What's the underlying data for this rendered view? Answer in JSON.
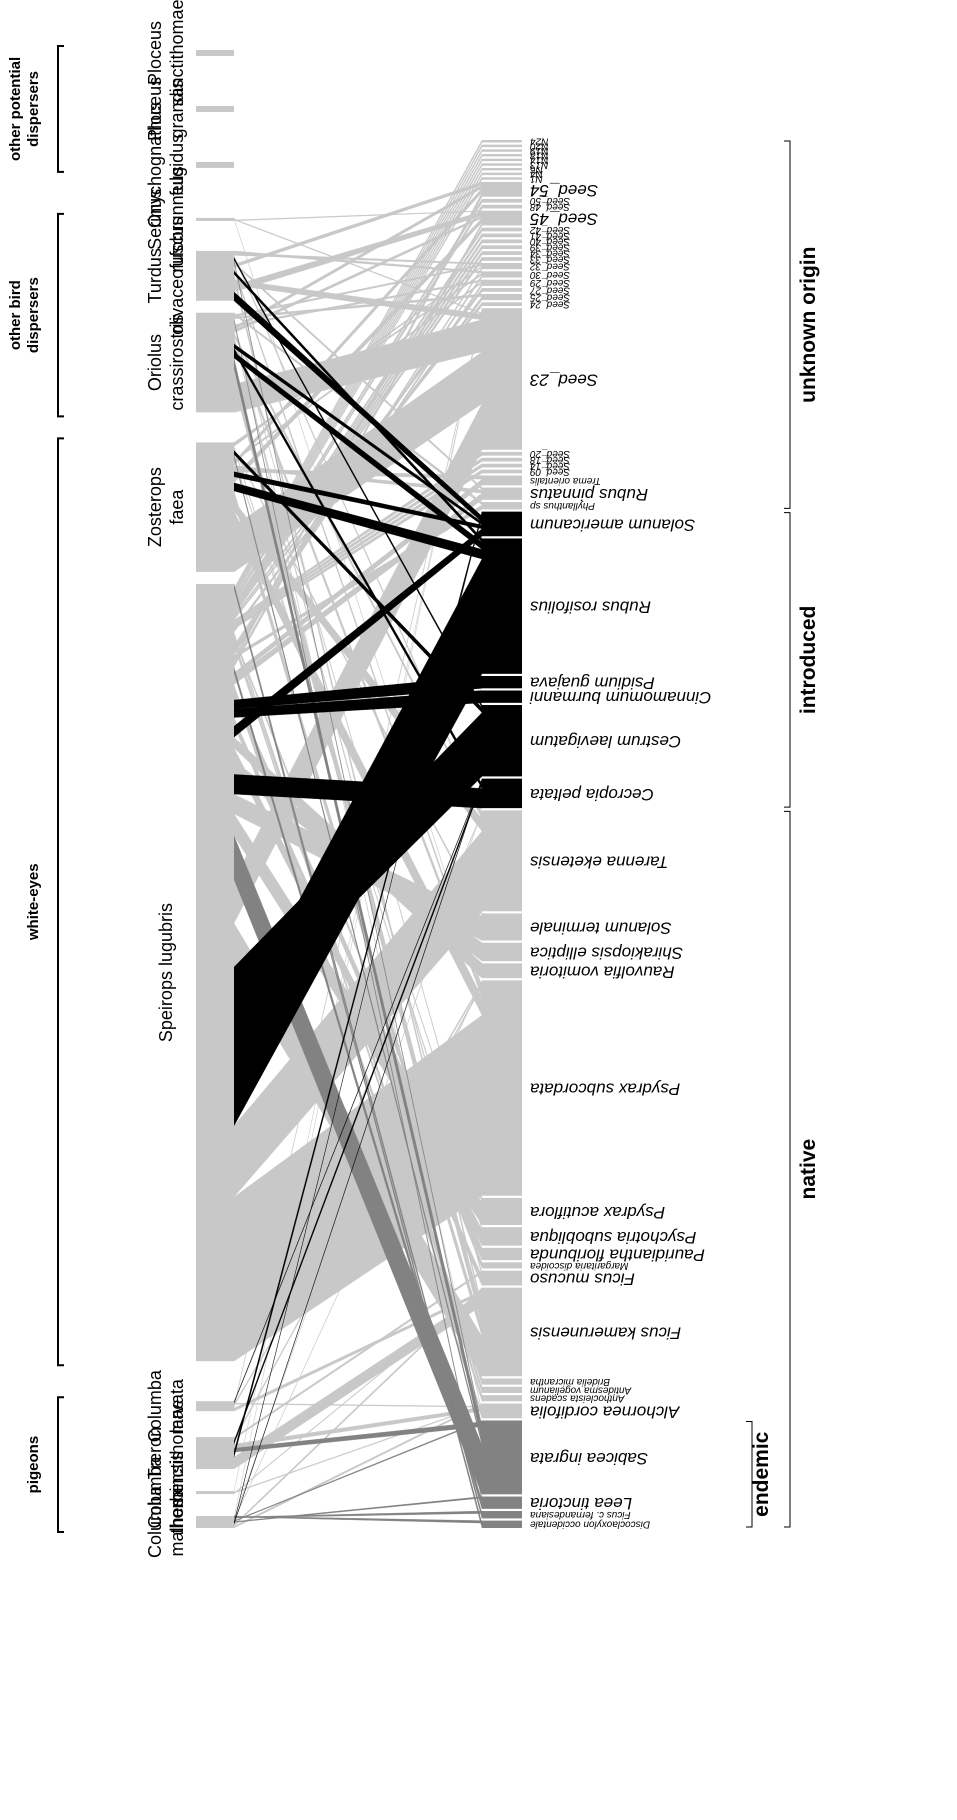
{
  "colors": {
    "native": "#c8c8c8",
    "introduced": "#000000",
    "endemic": "#828282",
    "background": "#ffffff"
  },
  "bird_groups": [
    {
      "label": "pigeons"
    },
    {
      "label": "white-eyes"
    },
    {
      "label": "other bird dispersers"
    },
    {
      "label": "other potential dispersers"
    }
  ],
  "birds": [
    {
      "name": "Columba malherbi",
      "lines": [
        "Columba",
        "malherbi"
      ],
      "weight": 12
    },
    {
      "name": "Columba thomensis",
      "lines": [
        "Columba",
        "thomensis"
      ],
      "weight": 3
    },
    {
      "name": "Treron sanctithomae",
      "lines": [
        "Treron",
        "sanctithomae"
      ],
      "weight": 32
    },
    {
      "name": "Columba larvata",
      "lines": [
        "Columba",
        "larvata"
      ],
      "weight": 10
    },
    {
      "name": "Speirops lugubris",
      "lines": [
        "Speirops lugubris"
      ],
      "weight": 780
    },
    {
      "name": "Zosterops faea",
      "lines": [
        "Zosterops",
        "faea"
      ],
      "weight": 130
    },
    {
      "name": "Oriolus crassirostris",
      "lines": [
        "Oriolus",
        "crassirostris"
      ],
      "weight": 100
    },
    {
      "name": "Turdus olivaceofuscus",
      "lines": [
        "Turdus",
        "olivaceofuscus"
      ],
      "weight": 50
    },
    {
      "name": "Serinus rufobrunneus",
      "lines": [
        "Serinus",
        "rufobrunneus"
      ],
      "weight": 3
    },
    {
      "name": "Onychognathus fulgidus",
      "lines": [
        "Onychognathus",
        "fulgidus"
      ],
      "weight": 6
    },
    {
      "name": "Ploceus grandis",
      "lines": [
        "Ploceus",
        "grandis"
      ],
      "weight": 6
    },
    {
      "name": "Ploceus sanctithomae",
      "lines": [
        "Ploceus",
        "sanctithomae"
      ],
      "weight": 6
    }
  ],
  "plants": [
    {
      "name": "Discoclaoxylon occidentale",
      "origin": "endemic",
      "weight": 6
    },
    {
      "name": "Ficus c. fernandesiana",
      "origin": "endemic",
      "weight": 6
    },
    {
      "name": "Leea tinctoria",
      "origin": "endemic",
      "weight": 10
    },
    {
      "name": "Sabicea ingrata",
      "origin": "endemic",
      "weight": 60
    },
    {
      "name": "Alchornea cordifolia",
      "origin": "native",
      "weight": 12
    },
    {
      "name": "Anthocleista scadens",
      "origin": "native",
      "weight": 5
    },
    {
      "name": "Antidesma vogelianum",
      "origin": "native",
      "weight": 5
    },
    {
      "name": "Bridelia micrantha",
      "origin": "native",
      "weight": 5
    },
    {
      "name": "Ficus kamerunensis",
      "origin": "native",
      "weight": 72
    },
    {
      "name": "Ficus mucuso",
      "origin": "native",
      "weight": 12
    },
    {
      "name": "Margaritaria discoidea",
      "origin": "native",
      "weight": 5
    },
    {
      "name": "Pauridiantha floribunda",
      "origin": "native",
      "weight": 10
    },
    {
      "name": "Psychotria subobliqua",
      "origin": "native",
      "weight": 15
    },
    {
      "name": "Psydrax acutiflora",
      "origin": "native",
      "weight": 22
    },
    {
      "name": "Psydrax subcordata",
      "origin": "native",
      "weight": 175
    },
    {
      "name": "Rauvolfia vomitoria",
      "origin": "native",
      "weight": 12
    },
    {
      "name": "Shirakiopsis elliptica",
      "origin": "native",
      "weight": 15
    },
    {
      "name": "Solanum terminale",
      "origin": "native",
      "weight": 22
    },
    {
      "name": "Tarenna eketensis",
      "origin": "native",
      "weight": 82
    },
    {
      "name": "Cecropia peltata",
      "origin": "introduced",
      "weight": 24
    },
    {
      "name": "Cestrum laevigatum",
      "origin": "introduced",
      "weight": 58
    },
    {
      "name": "Cinnamomum burmanni",
      "origin": "introduced",
      "weight": 10
    },
    {
      "name": "Psidium guajava",
      "origin": "introduced",
      "weight": 10
    },
    {
      "name": "Rubus rosifolius",
      "origin": "introduced",
      "weight": 110
    },
    {
      "name": "Solanum americanum",
      "origin": "introduced",
      "weight": 20
    },
    {
      "name": "Phyllanthus sp",
      "origin": "unknown",
      "weight": 6
    },
    {
      "name": "Rubus pinnatus",
      "origin": "unknown",
      "weight": 10
    },
    {
      "name": "Trema orientalis",
      "origin": "unknown",
      "weight": 8
    },
    {
      "name": "Seed_09",
      "origin": "unknown",
      "weight": 3
    },
    {
      "name": "Seed_14",
      "origin": "unknown",
      "weight": 3
    },
    {
      "name": "Seed_18",
      "origin": "unknown",
      "weight": 3
    },
    {
      "name": "Seed_20",
      "origin": "unknown",
      "weight": 3
    },
    {
      "name": "Seed_23",
      "origin": "unknown",
      "weight": 115
    },
    {
      "name": "Seed_24",
      "origin": "unknown",
      "weight": 3
    },
    {
      "name": "Seed_25",
      "origin": "unknown",
      "weight": 5
    },
    {
      "name": "Seed_27",
      "origin": "unknown",
      "weight": 3
    },
    {
      "name": "Seed_29",
      "origin": "unknown",
      "weight": 5
    },
    {
      "name": "Seed_30",
      "origin": "unknown",
      "weight": 5
    },
    {
      "name": "Seed_32",
      "origin": "unknown",
      "weight": 5
    },
    {
      "name": "Seed_33",
      "origin": "unknown",
      "weight": 3
    },
    {
      "name": "Seed_34",
      "origin": "unknown",
      "weight": 3
    },
    {
      "name": "Seed_39",
      "origin": "unknown",
      "weight": 3
    },
    {
      "name": "Seed_40",
      "origin": "unknown",
      "weight": 3
    },
    {
      "name": "Seed_41",
      "origin": "unknown",
      "weight": 3
    },
    {
      "name": "Seed_42",
      "origin": "unknown",
      "weight": 3
    },
    {
      "name": "Seed_45",
      "origin": "unknown",
      "weight": 12
    },
    {
      "name": "Seed_48",
      "origin": "unknown",
      "weight": 3
    },
    {
      "name": "Seed_50",
      "origin": "unknown",
      "weight": 3
    },
    {
      "name": "Seed_54",
      "origin": "unknown",
      "weight": 12
    },
    {
      "name": "N1",
      "origin": "unknown",
      "weight": 2
    },
    {
      "name": "N4",
      "origin": "unknown",
      "weight": 2
    },
    {
      "name": "N6",
      "origin": "unknown",
      "weight": 2
    },
    {
      "name": "N13",
      "origin": "unknown",
      "weight": 2
    },
    {
      "name": "N14",
      "origin": "unknown",
      "weight": 2
    },
    {
      "name": "N18",
      "origin": "unknown",
      "weight": 2
    },
    {
      "name": "N19",
      "origin": "unknown",
      "weight": 2
    },
    {
      "name": "N20",
      "origin": "unknown",
      "weight": 2
    },
    {
      "name": "N24",
      "origin": "unknown",
      "weight": 2
    }
  ],
  "origin_groups": [
    {
      "key": "endemic",
      "label": "endemic"
    },
    {
      "key": "native",
      "label": "native"
    },
    {
      "key": "introduced",
      "label": "introduced"
    },
    {
      "key": "unknown",
      "label": "unknown origin"
    }
  ],
  "interactions": [
    [
      "Speirops lugubris",
      "Psydrax subcordata",
      150
    ],
    [
      "Speirops lugubris",
      "Tarenna eketensis",
      65
    ],
    [
      "Speirops lugubris",
      "Rubus rosifolius",
      95
    ],
    [
      "Speirops lugubris",
      "Cestrum laevigatum",
      50
    ],
    [
      "Speirops lugubris",
      "Ficus kamerunensis",
      40
    ],
    [
      "Speirops lugubris",
      "Seed_23",
      40
    ],
    [
      "Speirops lugubris",
      "Sabicea ingrata",
      40
    ],
    [
      "Speirops lugubris",
      "Psydrax acutiflora",
      20
    ],
    [
      "Speirops lugubris",
      "Solanum terminale",
      18
    ],
    [
      "Speirops lugubris",
      "Cecropia peltata",
      18
    ],
    [
      "Speirops lugubris",
      "Shirakiopsis elliptica",
      12
    ],
    [
      "Speirops lugubris",
      "Psychotria subobliqua",
      12
    ],
    [
      "Speirops lugubris",
      "Rauvolfia vomitoria",
      10
    ],
    [
      "Speirops lugubris",
      "Solanum americanum",
      10
    ],
    [
      "Speirops lugubris",
      "Ficus mucuso",
      8
    ],
    [
      "Speirops lugubris",
      "Cinnamomum burmanni",
      8
    ],
    [
      "Speirops lugubris",
      "Psidium guajava",
      8
    ],
    [
      "Speirops lugubris",
      "Pauridiantha floribunda",
      8
    ],
    [
      "Speirops lugubris",
      "Alchornea cordifolia",
      6
    ],
    [
      "Speirops lugubris",
      "Rubus pinnatus",
      6
    ],
    [
      "Speirops lugubris",
      "Trema orientalis",
      5
    ],
    [
      "Speirops lugubris",
      "Leea tinctoria",
      5
    ],
    [
      "Speirops lugubris",
      "Seed_45",
      4
    ],
    [
      "Speirops lugubris",
      "Seed_54",
      4
    ],
    [
      "Speirops lugubris",
      "Phyllanthus sp",
      3
    ],
    [
      "Speirops lugubris",
      "Seed_32",
      3
    ],
    [
      "Speirops lugubris",
      "Seed_29",
      3
    ],
    [
      "Speirops lugubris",
      "Seed_30",
      3
    ],
    [
      "Speirops lugubris",
      "Anthocleista scadens",
      3
    ],
    [
      "Speirops lugubris",
      "Bridelia micrantha",
      3
    ],
    [
      "Speirops lugubris",
      "Margaritaria discoidea",
      3
    ],
    [
      "Speirops lugubris",
      "Antidesma vogelianum",
      3
    ],
    [
      "Speirops lugubris",
      "Seed_25",
      3
    ],
    [
      "Speirops lugubris",
      "Seed_09",
      2
    ],
    [
      "Speirops lugubris",
      "Seed_14",
      2
    ],
    [
      "Speirops lugubris",
      "Seed_18",
      2
    ],
    [
      "Speirops lugubris",
      "Seed_20",
      2
    ],
    [
      "Speirops lugubris",
      "Seed_24",
      2
    ],
    [
      "Speirops lugubris",
      "Seed_27",
      2
    ],
    [
      "Speirops lugubris",
      "Seed_33",
      2
    ],
    [
      "Speirops lugubris",
      "Seed_34",
      2
    ],
    [
      "Speirops lugubris",
      "Seed_39",
      2
    ],
    [
      "Speirops lugubris",
      "Seed_40",
      2
    ],
    [
      "Speirops lugubris",
      "Seed_41",
      2
    ],
    [
      "Speirops lugubris",
      "Seed_42",
      2
    ],
    [
      "Speirops lugubris",
      "Seed_48",
      2
    ],
    [
      "Speirops lugubris",
      "Seed_50",
      2
    ],
    [
      "Speirops lugubris",
      "N1",
      1
    ],
    [
      "Speirops lugubris",
      "N4",
      1
    ],
    [
      "Speirops lugubris",
      "N6",
      1
    ],
    [
      "Speirops lugubris",
      "N13",
      1
    ],
    [
      "Speirops lugubris",
      "N14",
      1
    ],
    [
      "Speirops lugubris",
      "N18",
      1
    ],
    [
      "Speirops lugubris",
      "N19",
      1
    ],
    [
      "Speirops lugubris",
      "N20",
      1
    ],
    [
      "Speirops lugubris",
      "N24",
      1
    ],
    [
      "Speirops lugubris",
      "Discoclaoxylon occidentale",
      2
    ],
    [
      "Speirops lugubris",
      "Ficus c. fernandesiana",
      2
    ],
    [
      "Zosterops faea",
      "Seed_23",
      45
    ],
    [
      "Zosterops faea",
      "Psydrax subcordata",
      15
    ],
    [
      "Zosterops faea",
      "Tarenna eketensis",
      10
    ],
    [
      "Zosterops faea",
      "Ficus kamerunensis",
      10
    ],
    [
      "Zosterops faea",
      "Rubus rosifolius",
      8
    ],
    [
      "Zosterops faea",
      "Seed_45",
      6
    ],
    [
      "Zosterops faea",
      "Solanum americanum",
      5
    ],
    [
      "Zosterops faea",
      "Trema orientalis",
      3
    ],
    [
      "Zosterops faea",
      "Rubus pinnatus",
      3
    ],
    [
      "Zosterops faea",
      "Seed_54",
      4
    ],
    [
      "Zosterops faea",
      "Seed_29",
      2
    ],
    [
      "Zosterops faea",
      "Psydrax acutiflora",
      2
    ],
    [
      "Zosterops faea",
      "Sabicea ingrata",
      3
    ],
    [
      "Zosterops faea",
      "Cestrum laevigatum",
      4
    ],
    [
      "Zosterops faea",
      "Solanum terminale",
      2
    ],
    [
      "Zosterops faea",
      "Psychotria subobliqua",
      2
    ],
    [
      "Zosterops faea",
      "Seed_32",
      2
    ],
    [
      "Zosterops faea",
      "Seed_30",
      2
    ],
    [
      "Oriolus crassirostris",
      "Seed_23",
      28
    ],
    [
      "Oriolus crassirostris",
      "Ficus kamerunensis",
      16
    ],
    [
      "Oriolus crassirostris",
      "Sabicea ingrata",
      10
    ],
    [
      "Oriolus crassirostris",
      "Rubus rosifolius",
      6
    ],
    [
      "Oriolus crassirostris",
      "Cecropia peltata",
      4
    ],
    [
      "Oriolus crassirostris",
      "Solanum americanum",
      4
    ],
    [
      "Oriolus crassirostris",
      "Psydrax subcordata",
      5
    ],
    [
      "Oriolus crassirostris",
      "Ficus mucuso",
      3
    ],
    [
      "Oriolus crassirostris",
      "Tarenna eketensis",
      3
    ],
    [
      "Oriolus crassirostris",
      "Seed_45",
      3
    ],
    [
      "Oriolus crassirostris",
      "Seed_54",
      3
    ],
    [
      "Oriolus crassirostris",
      "Seed_29",
      2
    ],
    [
      "Oriolus crassirostris",
      "Psydrax acutiflora",
      2
    ],
    [
      "Oriolus crassirostris",
      "Alchornea cordifolia",
      2
    ],
    [
      "Oriolus crassirostris",
      "Leea tinctoria",
      2
    ],
    [
      "Oriolus crassirostris",
      "Seed_25",
      2
    ],
    [
      "Oriolus crassirostris",
      "Seed_32",
      2
    ],
    [
      "Oriolus crassirostris",
      "Phyllanthus sp",
      2
    ],
    [
      "Turdus olivaceofuscus",
      "Solanum americanum",
      8
    ],
    [
      "Turdus olivaceofuscus",
      "Seed_45",
      6
    ],
    [
      "Turdus olivaceofuscus",
      "Seed_23",
      5
    ],
    [
      "Turdus olivaceofuscus",
      "Ficus kamerunensis",
      5
    ],
    [
      "Turdus olivaceofuscus",
      "Rubus rosifolius",
      3
    ],
    [
      "Turdus olivaceofuscus",
      "Psydrax subcordata",
      3
    ],
    [
      "Turdus olivaceofuscus",
      "Seed_54",
      3
    ],
    [
      "Turdus olivaceofuscus",
      "Rubus pinnatus",
      2
    ],
    [
      "Turdus olivaceofuscus",
      "Sabicea ingrata",
      2
    ],
    [
      "Turdus olivaceofuscus",
      "Cestrum laevigatum",
      2
    ],
    [
      "Turdus olivaceofuscus",
      "Tarenna eketensis",
      2
    ],
    [
      "Turdus olivaceofuscus",
      "Seed_32",
      2
    ],
    [
      "Turdus olivaceofuscus",
      "Seed_30",
      2
    ],
    [
      "Serinus rufobrunneus",
      "Seed_45",
      1
    ],
    [
      "Serinus rufobrunneus",
      "Seed_23",
      1
    ],
    [
      "Serinus rufobrunneus",
      "Psydrax subcordata",
      1
    ],
    [
      "Treron sanctithomae",
      "Ficus kamerunensis",
      12
    ],
    [
      "Treron sanctithomae",
      "Solanum americanum",
      5
    ],
    [
      "Treron sanctithomae",
      "Sabicea ingrata",
      4
    ],
    [
      "Treron sanctithomae",
      "Alchornea cordifolia",
      4
    ],
    [
      "Treron sanctithomae",
      "Cecropia peltata",
      3
    ],
    [
      "Treron sanctithomae",
      "Psydrax subcordata",
      2
    ],
    [
      "Treron sanctithomae",
      "Ficus mucuso",
      2
    ],
    [
      "Columba larvata",
      "Ficus kamerunensis",
      3
    ],
    [
      "Columba larvata",
      "Seed_23",
      2
    ],
    [
      "Columba larvata",
      "Psydrax subcordata",
      2
    ],
    [
      "Columba larvata",
      "Alchornea cordifolia",
      1
    ],
    [
      "Columba larvata",
      "Cecropia peltata",
      1
    ],
    [
      "Columba larvata",
      "Tarenna eketensis",
      1
    ],
    [
      "Columba thomensis",
      "Ficus kamerunensis",
      1
    ],
    [
      "Columba thomensis",
      "Alchornea cordifolia",
      1
    ],
    [
      "Columba thomensis",
      "Seed_23",
      1
    ],
    [
      "Columba malherbi",
      "Alchornea cordifolia",
      2
    ],
    [
      "Columba malherbi",
      "Ficus kamerunensis",
      2
    ],
    [
      "Columba malherbi",
      "Cecropia peltata",
      1
    ],
    [
      "Columba malherbi",
      "Solanum americanum",
      1
    ],
    [
      "Columba malherbi",
      "Leea tinctoria",
      1
    ],
    [
      "Columba malherbi",
      "Sabicea ingrata",
      1
    ],
    [
      "Columba malherbi",
      "Psydrax subcordata",
      1
    ],
    [
      "Columba malherbi",
      "Tarenna eketensis",
      1
    ],
    [
      "Columba malherbi",
      "Seed_23",
      1
    ],
    [
      "Columba malherbi",
      "Ficus c. fernandesiana",
      1
    ],
    [
      "Columba malherbi",
      "Discoclaoxylon occidentale",
      1
    ]
  ]
}
